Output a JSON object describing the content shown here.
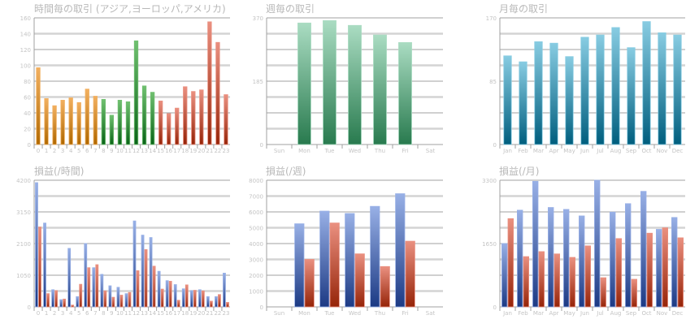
{
  "colors": {
    "orange": [
      "#f2b060",
      "#b06800"
    ],
    "green": [
      "#70c070",
      "#0a6418"
    ],
    "red": [
      "#ea9080",
      "#962408"
    ],
    "blue": [
      "#98b0e6",
      "#1c3a84"
    ],
    "weekgreen": [
      "#aadcc2",
      "#287a4e"
    ],
    "teal": [
      "#88cce2",
      "#005e7e"
    ],
    "grid_dark": "#a0a0a0",
    "grid_light": "#d4d4d4"
  },
  "chart_data": [
    {
      "type": "bar",
      "title": "時間毎の取引 (アジア,ヨーロッパ,アメリカ)",
      "categories": [
        "0",
        "1",
        "2",
        "3",
        "4",
        "5",
        "6",
        "7",
        "8",
        "9",
        "10",
        "11",
        "12",
        "13",
        "14",
        "15",
        "16",
        "17",
        "18",
        "19",
        "20",
        "21",
        "22",
        "23"
      ],
      "series": [
        {
          "values": [
            97,
            58,
            49,
            56,
            59,
            53,
            70,
            61,
            57,
            37,
            56,
            54,
            131,
            74,
            66,
            55,
            39,
            46,
            73,
            67,
            69,
            155,
            129,
            63
          ]
        }
      ],
      "bar_colors": [
        "orange",
        "orange",
        "orange",
        "orange",
        "orange",
        "orange",
        "orange",
        "orange",
        "green",
        "green",
        "green",
        "green",
        "green",
        "green",
        "green",
        "red",
        "red",
        "red",
        "red",
        "red",
        "red",
        "red",
        "red",
        "red"
      ],
      "yticks": [
        0,
        20,
        40,
        60,
        80,
        100,
        120,
        140,
        160
      ],
      "ylim": [
        0,
        160
      ],
      "grid": true
    },
    {
      "type": "bar",
      "title": "週毎の取引",
      "categories": [
        "Sun",
        "Mon",
        "Tue",
        "Wed",
        "Thu",
        "Fri",
        "Sat"
      ],
      "series": [
        {
          "values": [
            0,
            355,
            362,
            348,
            320,
            298,
            0
          ],
          "color": "weekgreen"
        }
      ],
      "yticks": [
        0,
        185,
        370
      ],
      "ylim": [
        0,
        370
      ],
      "grid": true
    },
    {
      "type": "bar",
      "title": "月毎の取引",
      "categories": [
        "Jan",
        "Feb",
        "Mar",
        "Apr",
        "May",
        "Jun",
        "Jul",
        "Aug",
        "Sep",
        "Oct",
        "Nov",
        "Dec"
      ],
      "series": [
        {
          "values": [
            119,
            111,
            138,
            136,
            118,
            144,
            147,
            157,
            130,
            165,
            150,
            147
          ],
          "color": "teal"
        }
      ],
      "yticks": [
        0,
        85,
        170
      ],
      "ylim": [
        0,
        170
      ],
      "grid": true
    },
    {
      "type": "bar",
      "title": "損益(/時間)",
      "categories": [
        "0",
        "1",
        "2",
        "3",
        "4",
        "5",
        "6",
        "7",
        "8",
        "9",
        "10",
        "11",
        "12",
        "13",
        "14",
        "15",
        "16",
        "17",
        "18",
        "19",
        "20",
        "21",
        "22",
        "23"
      ],
      "series": [
        {
          "values": [
            4120,
            2780,
            570,
            240,
            1940,
            340,
            2100,
            1300,
            1080,
            700,
            650,
            440,
            2850,
            2380,
            2300,
            1180,
            870,
            740,
            600,
            540,
            570,
            340,
            340,
            1120
          ],
          "color": "blue"
        },
        {
          "values": [
            2650,
            440,
            540,
            260,
            60,
            750,
            1300,
            1400,
            530,
            320,
            390,
            480,
            1200,
            1900,
            1350,
            590,
            850,
            220,
            730,
            550,
            530,
            190,
            410,
            150
          ],
          "color": "red"
        }
      ],
      "yticks": [
        0,
        1050,
        2100,
        3150,
        4200
      ],
      "ylim": [
        0,
        4200
      ],
      "grid": true
    },
    {
      "type": "bar",
      "title": "損益(/週)",
      "categories": [
        "Sun",
        "Mon",
        "Tue",
        "Wed",
        "Thu",
        "Fri",
        "Sat"
      ],
      "series": [
        {
          "values": [
            0,
            5250,
            6050,
            5900,
            6350,
            7150,
            0
          ],
          "color": "blue"
        },
        {
          "values": [
            0,
            3000,
            5300,
            3350,
            2550,
            4150,
            0
          ],
          "color": "red"
        }
      ],
      "yticks": [
        0,
        1000,
        2000,
        3000,
        4000,
        5000,
        6000,
        7000,
        8000
      ],
      "ylim": [
        0,
        8000
      ],
      "grid": true
    },
    {
      "type": "bar",
      "title": "損益(/月)",
      "categories": [
        "Jan",
        "Feb",
        "Mar",
        "Apr",
        "May",
        "Jun",
        "Jul",
        "Aug",
        "Sep",
        "Oct",
        "Nov",
        "Dec"
      ],
      "series": [
        {
          "values": [
            1650,
            2520,
            3270,
            2590,
            2540,
            2370,
            3300,
            2470,
            2690,
            3010,
            2020,
            2330
          ],
          "color": "blue"
        },
        {
          "values": [
            2300,
            1310,
            1440,
            1380,
            1290,
            1590,
            760,
            1780,
            720,
            1920,
            2060,
            1800
          ],
          "color": "red"
        }
      ],
      "yticks": [
        0,
        1650,
        3300
      ],
      "ylim": [
        0,
        3300
      ],
      "grid": true
    }
  ]
}
